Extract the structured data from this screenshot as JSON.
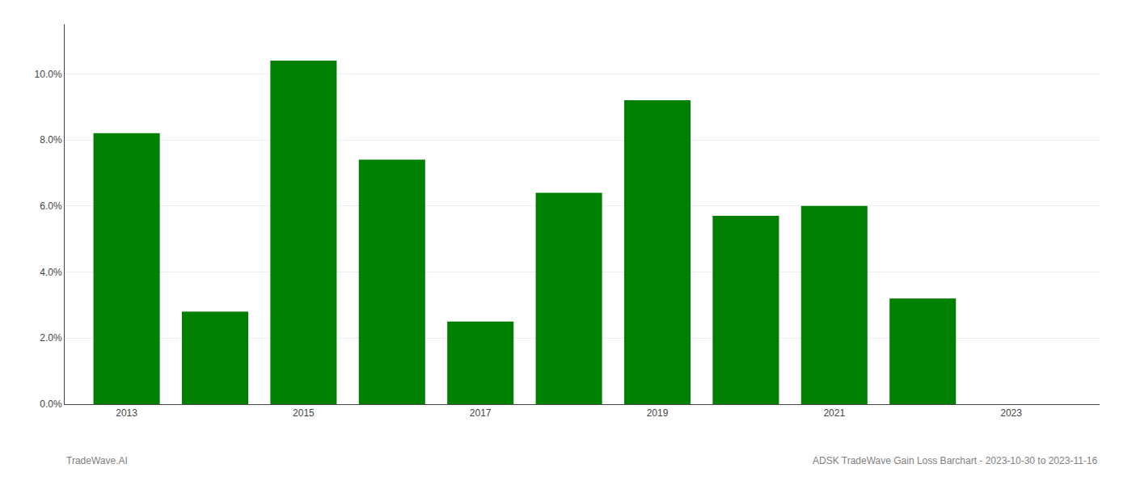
{
  "chart_data": {
    "type": "bar",
    "x": [
      2013,
      2014,
      2015,
      2016,
      2017,
      2018,
      2019,
      2020,
      2021,
      2022
    ],
    "values": [
      0.082,
      0.028,
      0.104,
      0.074,
      0.025,
      0.064,
      0.092,
      0.057,
      0.06,
      0.032
    ],
    "color": "#008000",
    "xlim": [
      2012.3,
      2024.0
    ],
    "xticks": [
      2013,
      2015,
      2017,
      2019,
      2021,
      2023
    ],
    "ylim": [
      0,
      0.115
    ],
    "yticks": [
      {
        "value": 0.0,
        "label": "0.0%"
      },
      {
        "value": 0.02,
        "label": "2.0%"
      },
      {
        "value": 0.04,
        "label": "4.0%"
      },
      {
        "value": 0.06,
        "label": "6.0%"
      },
      {
        "value": 0.08,
        "label": "8.0%"
      },
      {
        "value": 0.1,
        "label": "10.0%"
      }
    ],
    "grid": true,
    "annotations": [
      "TradeWave.AI",
      "ADSK TradeWave Gain Loss Barchart - 2023-10-30 to 2023-11-16"
    ]
  }
}
